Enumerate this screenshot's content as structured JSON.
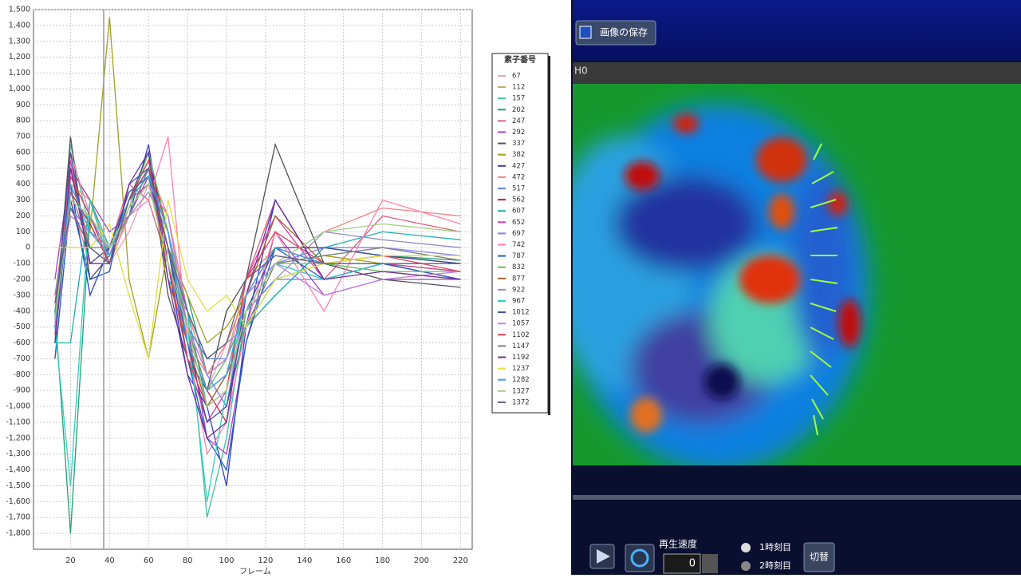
{
  "chart_data": {
    "type": "line",
    "x_label": "フレーム",
    "legend_title": "素子番号",
    "x": [
      12,
      20,
      30,
      40,
      50,
      60,
      70,
      80,
      90,
      100,
      110,
      125,
      150,
      180,
      220
    ],
    "xlim": [
      1,
      226
    ],
    "xticks": [
      20,
      40,
      60,
      80,
      100,
      120,
      140,
      160,
      180,
      200,
      220
    ],
    "ylim": [
      -1900,
      1500
    ],
    "yticks": [
      {
        "value": 1500,
        "label": "1,500"
      },
      {
        "value": 1400,
        "label": "1,400"
      },
      {
        "value": 1300,
        "label": "1,300"
      },
      {
        "value": 1200,
        "label": "1,200"
      },
      {
        "value": 1100,
        "label": "1,100"
      },
      {
        "value": 1000,
        "label": "1,000"
      },
      900,
      800,
      700,
      600,
      500,
      400,
      300,
      200,
      100,
      0,
      -100,
      -200,
      -300,
      -400,
      -500,
      -600,
      -700,
      -800,
      -900,
      {
        "value": -1000,
        "label": "-1,000"
      },
      {
        "value": -1100,
        "label": "-1,100"
      },
      {
        "value": -1200,
        "label": "-1,200"
      },
      {
        "value": -1300,
        "label": "-1,300"
      },
      {
        "value": -1400,
        "label": "-1,400"
      },
      {
        "value": -1500,
        "label": "-1,500"
      },
      {
        "value": -1600,
        "label": "-1,600"
      },
      {
        "value": -1700,
        "label": "-1,700"
      },
      {
        "value": -1800,
        "label": "-1,800"
      }
    ],
    "grid": true,
    "series": [
      {
        "name": "67",
        "color": "#e8a0c0",
        "values": [
          -600,
          600,
          200,
          -100,
          100,
          400,
          200,
          -500,
          -900,
          -600,
          -300,
          -100,
          -200,
          -100,
          -150
        ]
      },
      {
        "name": "112",
        "color": "#c8a060",
        "values": [
          -300,
          400,
          300,
          -50,
          200,
          500,
          100,
          -600,
          -800,
          -700,
          -200,
          0,
          -100,
          -150,
          -200
        ]
      },
      {
        "name": "157",
        "color": "#40c0a0",
        "values": [
          -500,
          650,
          100,
          0,
          300,
          600,
          -200,
          -400,
          -1700,
          -1200,
          -400,
          -200,
          -100,
          -50,
          -100
        ]
      },
      {
        "name": "202",
        "color": "#20a070",
        "values": [
          -400,
          -1800,
          200,
          -100,
          200,
          500,
          0,
          -300,
          -800,
          -1000,
          -500,
          -300,
          0,
          -50,
          -80
        ]
      },
      {
        "name": "247",
        "color": "#e06080",
        "values": [
          -700,
          300,
          -100,
          0,
          400,
          300,
          -100,
          -600,
          -1000,
          -900,
          -200,
          300,
          -200,
          200,
          100
        ]
      },
      {
        "name": "292",
        "color": "#a040c0",
        "values": [
          -200,
          500,
          300,
          100,
          200,
          450,
          -100,
          -500,
          -1200,
          -1300,
          -600,
          100,
          -300,
          -200,
          -200
        ]
      },
      {
        "name": "337",
        "color": "#505050",
        "values": [
          -500,
          700,
          -200,
          -50,
          300,
          600,
          -300,
          -700,
          -900,
          -400,
          -200,
          650,
          -100,
          -200,
          -250
        ]
      },
      {
        "name": "382",
        "color": "#a0a020",
        "values": [
          -300,
          200,
          100,
          1450,
          -200,
          -700,
          0,
          -300,
          -600,
          -500,
          -300,
          -100,
          -50,
          -100,
          -150
        ]
      },
      {
        "name": "427",
        "color": "#3040c0",
        "values": [
          -600,
          400,
          -300,
          0,
          200,
          650,
          -100,
          -800,
          -1000,
          -1500,
          -500,
          300,
          -200,
          -100,
          -200
        ]
      },
      {
        "name": "472",
        "color": "#f08080",
        "values": [
          -400,
          300,
          -100,
          -100,
          300,
          500,
          200,
          -400,
          -800,
          -600,
          -300,
          -100,
          100,
          250,
          200
        ]
      },
      {
        "name": "517",
        "color": "#6080e0",
        "values": [
          -500,
          450,
          200,
          -50,
          250,
          400,
          0,
          -500,
          -700,
          -700,
          -400,
          -200,
          -200,
          -100,
          -100
        ]
      },
      {
        "name": "562",
        "color": "#c02040",
        "values": [
          -350,
          350,
          150,
          -100,
          300,
          550,
          100,
          -600,
          -900,
          -1100,
          -300,
          0,
          -100,
          -100,
          -200
        ]
      },
      {
        "name": "607",
        "color": "#20b0b0",
        "values": [
          -600,
          -600,
          300,
          0,
          200,
          500,
          -200,
          -400,
          -1000,
          -800,
          -500,
          -300,
          0,
          100,
          50
        ]
      },
      {
        "name": "652",
        "color": "#d040a0",
        "values": [
          -450,
          550,
          -100,
          -100,
          300,
          400,
          0,
          -700,
          -1100,
          -900,
          -200,
          200,
          -200,
          -100,
          -150
        ]
      },
      {
        "name": "697",
        "color": "#8080ff",
        "values": [
          -300,
          250,
          100,
          0,
          350,
          450,
          -100,
          -500,
          -800,
          -1000,
          -300,
          -100,
          0,
          0,
          -50
        ]
      },
      {
        "name": "742",
        "color": "#ff80b0",
        "values": [
          -500,
          600,
          200,
          -100,
          200,
          300,
          700,
          -600,
          -1300,
          -1100,
          -500,
          100,
          -400,
          300,
          150
        ]
      },
      {
        "name": "787",
        "color": "#2060c0",
        "values": [
          -700,
          300,
          -200,
          -150,
          400,
          500,
          0,
          -700,
          -1200,
          -1400,
          -600,
          0,
          -200,
          -100,
          -200
        ]
      },
      {
        "name": "832",
        "color": "#60c060",
        "values": [
          -400,
          400,
          100,
          -50,
          250,
          600,
          100,
          -500,
          -900,
          -700,
          -400,
          -100,
          -100,
          -150,
          -150
        ]
      },
      {
        "name": "877",
        "color": "#b06030",
        "values": [
          -600,
          500,
          0,
          -100,
          300,
          500,
          -200,
          -600,
          -1000,
          -800,
          -300,
          200,
          -100,
          -50,
          -100
        ]
      },
      {
        "name": "922",
        "color": "#9090c0",
        "values": [
          -300,
          300,
          200,
          0,
          200,
          350,
          100,
          -400,
          -700,
          -600,
          -500,
          -200,
          100,
          50,
          0
        ]
      },
      {
        "name": "967",
        "color": "#30d0c0",
        "values": [
          -500,
          -1500,
          300,
          -100,
          300,
          500,
          -100,
          -500,
          -1600,
          -900,
          -300,
          -100,
          -200,
          -100,
          -100
        ]
      },
      {
        "name": "1012",
        "color": "#4050a0",
        "values": [
          -450,
          600,
          -100,
          0,
          350,
          450,
          0,
          -600,
          -1100,
          -1000,
          -400,
          0,
          0,
          -50,
          -100
        ]
      },
      {
        "name": "1057",
        "color": "#c080e0",
        "values": [
          -350,
          200,
          100,
          -50,
          250,
          400,
          200,
          -500,
          -800,
          -700,
          -300,
          -100,
          -300,
          -200,
          -150
        ]
      },
      {
        "name": "1102",
        "color": "#e04060",
        "values": [
          -550,
          450,
          200,
          -100,
          300,
          550,
          -100,
          -700,
          -1000,
          -900,
          -200,
          100,
          -100,
          -50,
          -150
        ]
      },
      {
        "name": "1147",
        "color": "#808080",
        "values": [
          -400,
          350,
          0,
          0,
          200,
          500,
          0,
          -500,
          -900,
          -800,
          -500,
          -100,
          -50,
          0,
          -80
        ]
      },
      {
        "name": "1192",
        "color": "#7030a0",
        "values": [
          -600,
          500,
          -100,
          -100,
          400,
          600,
          -200,
          -800,
          -1200,
          -1100,
          -300,
          300,
          -200,
          -150,
          -200
        ]
      },
      {
        "name": "1237",
        "color": "#e0e040",
        "values": [
          0,
          0,
          0,
          150,
          -300,
          -700,
          300,
          -200,
          -400,
          -300,
          -500,
          -200,
          -100,
          -50,
          -50
        ]
      },
      {
        "name": "1282",
        "color": "#40a0e0",
        "values": [
          -500,
          400,
          100,
          -50,
          300,
          450,
          100,
          -600,
          -900,
          -800,
          -300,
          0,
          -100,
          -100,
          -100
        ]
      },
      {
        "name": "1327",
        "color": "#a0d080",
        "values": [
          -450,
          300,
          200,
          0,
          250,
          400,
          -100,
          -500,
          -1000,
          -900,
          -400,
          -100,
          100,
          150,
          100
        ]
      },
      {
        "name": "1372",
        "color": "#606080",
        "values": [
          -350,
          250,
          0,
          -100,
          300,
          500,
          0,
          -400,
          -700,
          -600,
          -200,
          -50,
          -100,
          -100,
          -100
        ]
      }
    ]
  },
  "panel": {
    "save_button": "画像の保存",
    "tab_label": "H0",
    "speed_label": "再生速度",
    "speed_value": 0,
    "radio_options": [
      "1時刻目",
      "2時刻目"
    ],
    "switch_button": "切替"
  }
}
